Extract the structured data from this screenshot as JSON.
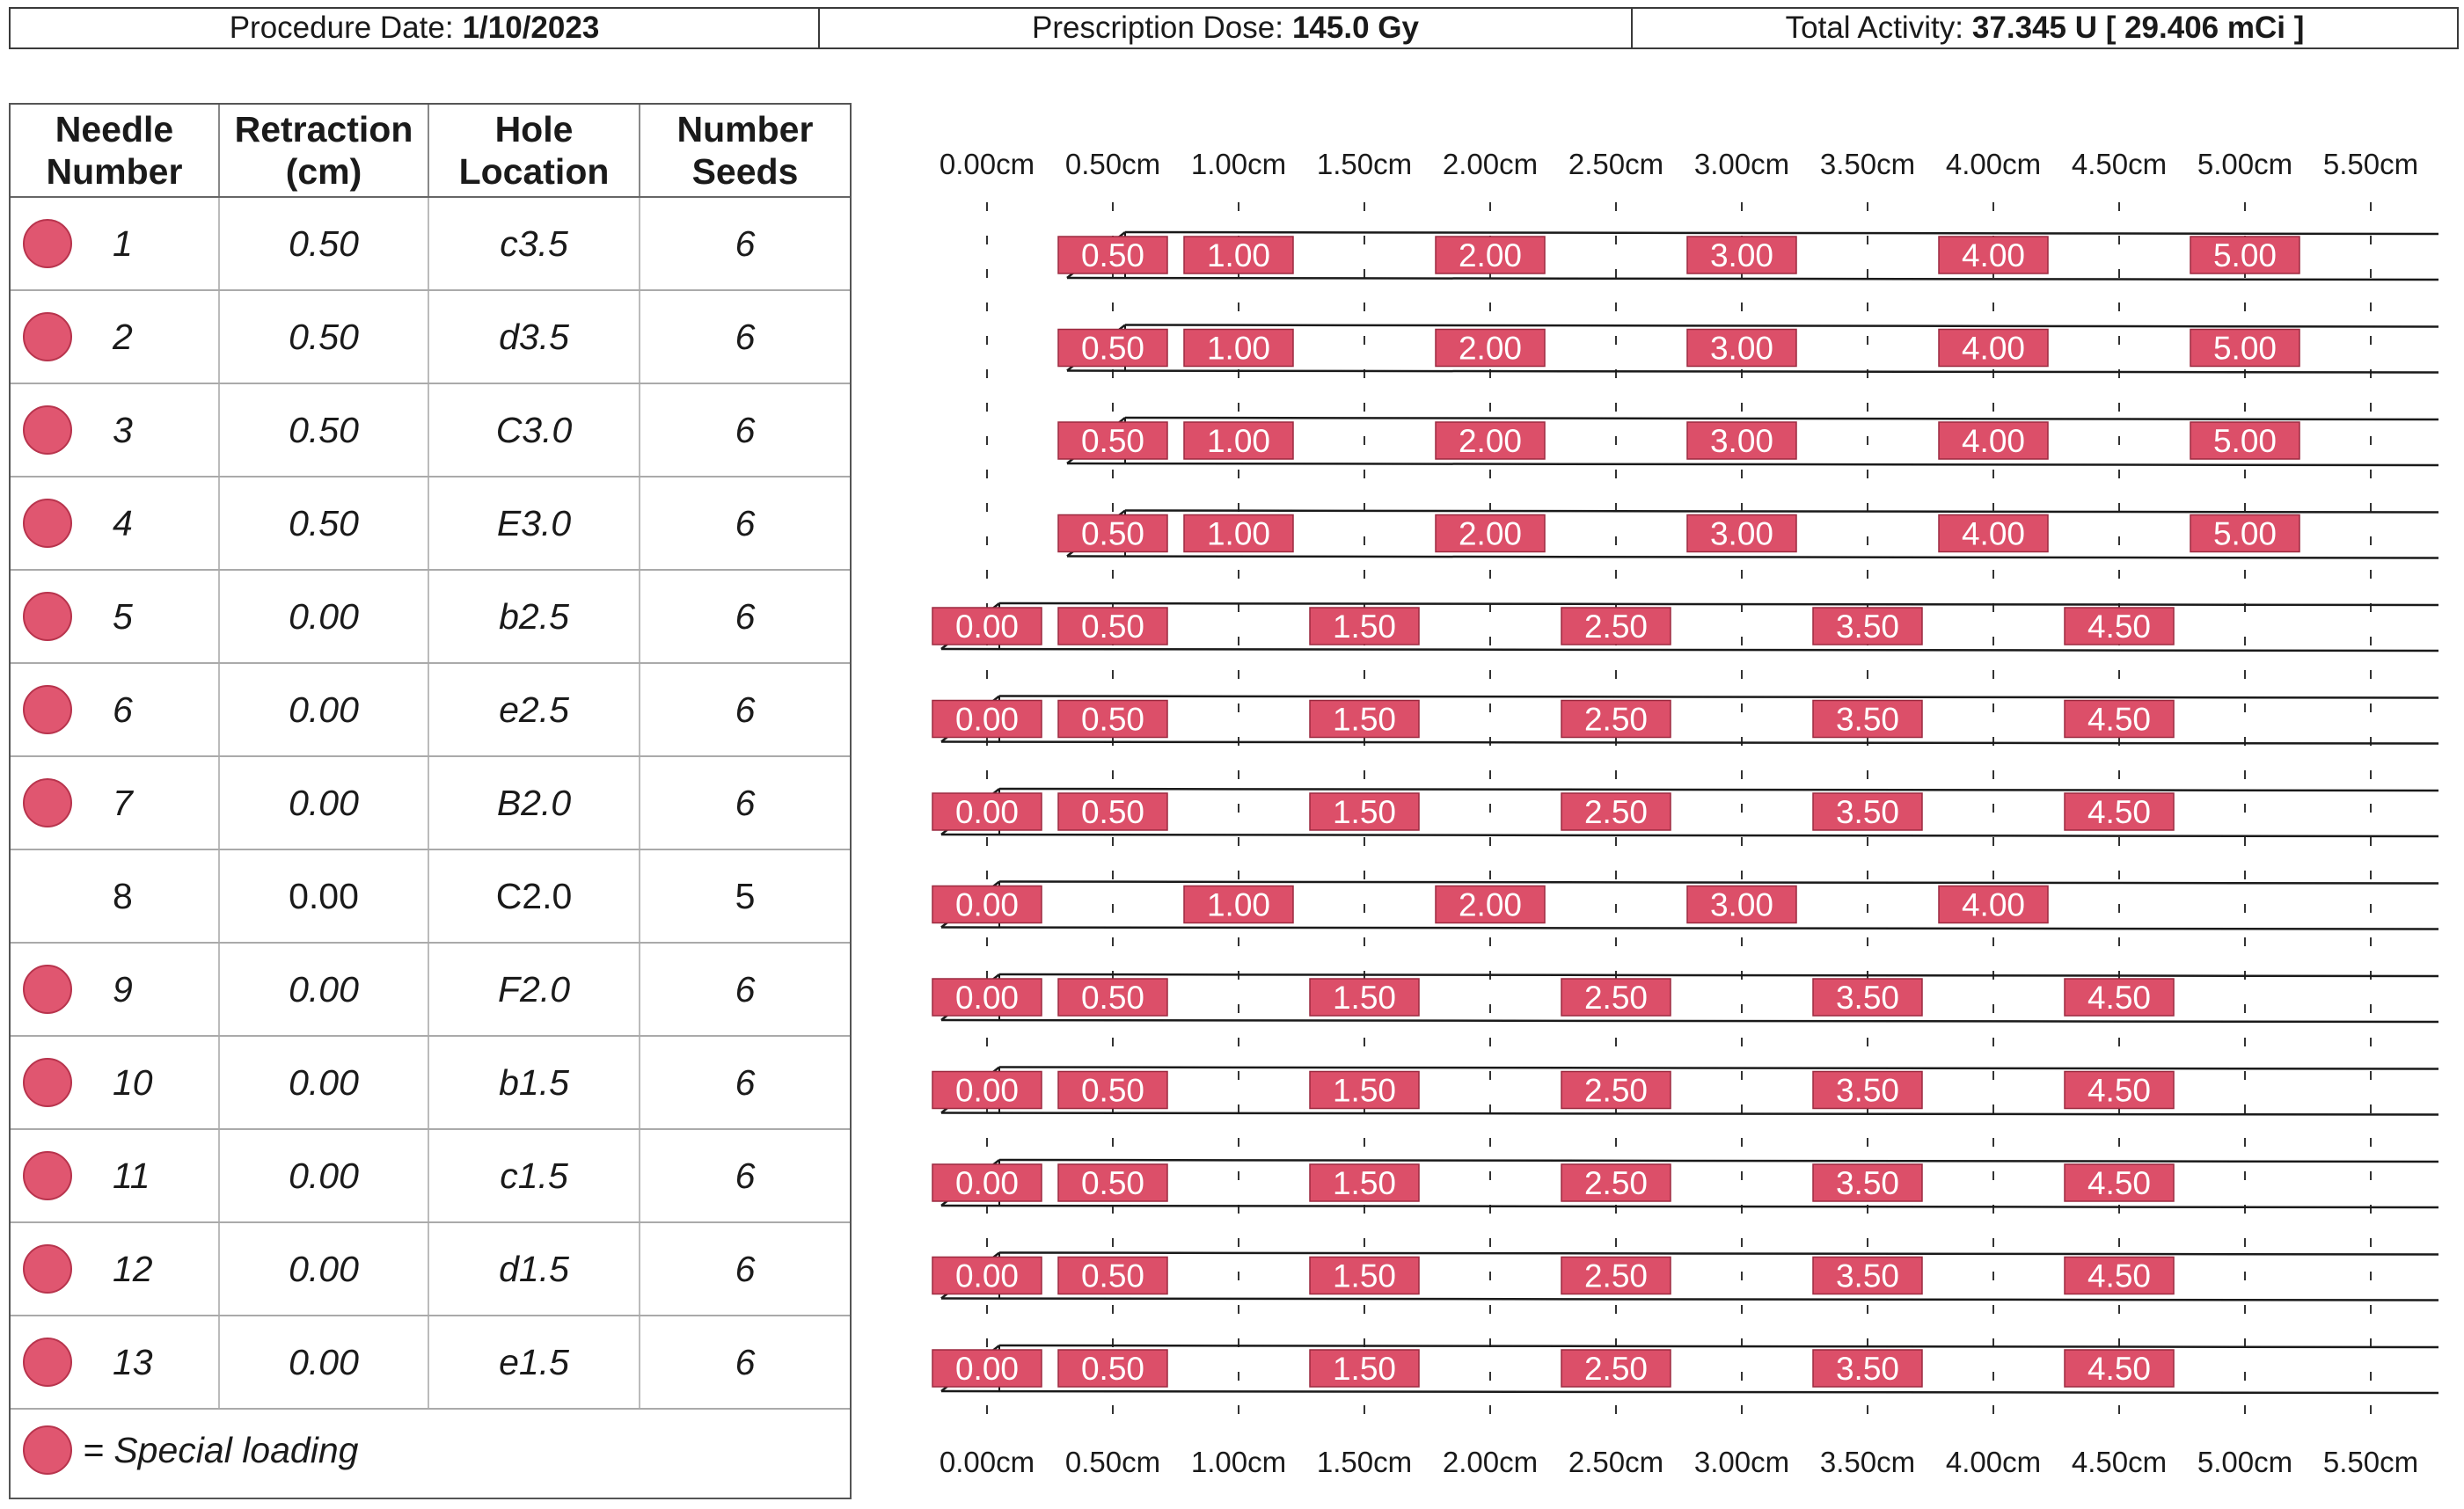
{
  "header": {
    "procedure_date_label": "Procedure Date:",
    "procedure_date": "1/10/2023",
    "prescription_dose_label": "Prescription Dose:",
    "prescription_dose": "145.0 Gy",
    "total_activity_label": "Total Activity:",
    "total_activity": "37.345 U [ 29.406 mCi ]"
  },
  "table": {
    "columns": [
      [
        "Needle",
        "Number"
      ],
      [
        "Retraction",
        "(cm)"
      ],
      [
        "Hole",
        "Location"
      ],
      [
        "Number",
        "Seeds"
      ]
    ],
    "rows": [
      {
        "needle": "1",
        "retraction": "0.50",
        "hole": "c3.5",
        "seeds": "6",
        "special": true
      },
      {
        "needle": "2",
        "retraction": "0.50",
        "hole": "d3.5",
        "seeds": "6",
        "special": true
      },
      {
        "needle": "3",
        "retraction": "0.50",
        "hole": "C3.0",
        "seeds": "6",
        "special": true
      },
      {
        "needle": "4",
        "retraction": "0.50",
        "hole": "E3.0",
        "seeds": "6",
        "special": true
      },
      {
        "needle": "5",
        "retraction": "0.00",
        "hole": "b2.5",
        "seeds": "6",
        "special": true
      },
      {
        "needle": "6",
        "retraction": "0.00",
        "hole": "e2.5",
        "seeds": "6",
        "special": true
      },
      {
        "needle": "7",
        "retraction": "0.00",
        "hole": "B2.0",
        "seeds": "6",
        "special": true
      },
      {
        "needle": "8",
        "retraction": "0.00",
        "hole": "C2.0",
        "seeds": "5",
        "special": false
      },
      {
        "needle": "9",
        "retraction": "0.00",
        "hole": "F2.0",
        "seeds": "6",
        "special": true
      },
      {
        "needle": "10",
        "retraction": "0.00",
        "hole": "b1.5",
        "seeds": "6",
        "special": true
      },
      {
        "needle": "11",
        "retraction": "0.00",
        "hole": "c1.5",
        "seeds": "6",
        "special": true
      },
      {
        "needle": "12",
        "retraction": "0.00",
        "hole": "d1.5",
        "seeds": "6",
        "special": true
      },
      {
        "needle": "13",
        "retraction": "0.00",
        "hole": "e1.5",
        "seeds": "6",
        "special": true
      }
    ],
    "legend": "= Special loading"
  },
  "axis": {
    "ticks": [
      "0.00cm",
      "0.50cm",
      "1.00cm",
      "1.50cm",
      "2.00cm",
      "2.50cm",
      "3.00cm",
      "3.50cm",
      "4.00cm",
      "4.50cm",
      "5.00cm",
      "5.50cm"
    ]
  },
  "needles": [
    {
      "tip_cm": 0.5,
      "seeds": [
        "0.50",
        "1.00",
        "2.00",
        "3.00",
        "4.00",
        "5.00"
      ]
    },
    {
      "tip_cm": 0.5,
      "seeds": [
        "0.50",
        "1.00",
        "2.00",
        "3.00",
        "4.00",
        "5.00"
      ]
    },
    {
      "tip_cm": 0.5,
      "seeds": [
        "0.50",
        "1.00",
        "2.00",
        "3.00",
        "4.00",
        "5.00"
      ]
    },
    {
      "tip_cm": 0.5,
      "seeds": [
        "0.50",
        "1.00",
        "2.00",
        "3.00",
        "4.00",
        "5.00"
      ]
    },
    {
      "tip_cm": 0.0,
      "seeds": [
        "0.00",
        "0.50",
        "1.50",
        "2.50",
        "3.50",
        "4.50"
      ]
    },
    {
      "tip_cm": 0.0,
      "seeds": [
        "0.00",
        "0.50",
        "1.50",
        "2.50",
        "3.50",
        "4.50"
      ]
    },
    {
      "tip_cm": 0.0,
      "seeds": [
        "0.00",
        "0.50",
        "1.50",
        "2.50",
        "3.50",
        "4.50"
      ]
    },
    {
      "tip_cm": 0.0,
      "seeds": [
        "0.00",
        "1.00",
        "2.00",
        "3.00",
        "4.00"
      ]
    },
    {
      "tip_cm": 0.0,
      "seeds": [
        "0.00",
        "0.50",
        "1.50",
        "2.50",
        "3.50",
        "4.50"
      ]
    },
    {
      "tip_cm": 0.0,
      "seeds": [
        "0.00",
        "0.50",
        "1.50",
        "2.50",
        "3.50",
        "4.50"
      ]
    },
    {
      "tip_cm": 0.0,
      "seeds": [
        "0.00",
        "0.50",
        "1.50",
        "2.50",
        "3.50",
        "4.50"
      ]
    },
    {
      "tip_cm": 0.0,
      "seeds": [
        "0.00",
        "0.50",
        "1.50",
        "2.50",
        "3.50",
        "4.50"
      ]
    },
    {
      "tip_cm": 0.0,
      "seeds": [
        "0.00",
        "0.50",
        "1.50",
        "2.50",
        "3.50",
        "4.50"
      ]
    }
  ],
  "colors": {
    "seed_fill": "#dc4f69",
    "special_dot": "#e05670",
    "line": "#1a1a1a"
  }
}
